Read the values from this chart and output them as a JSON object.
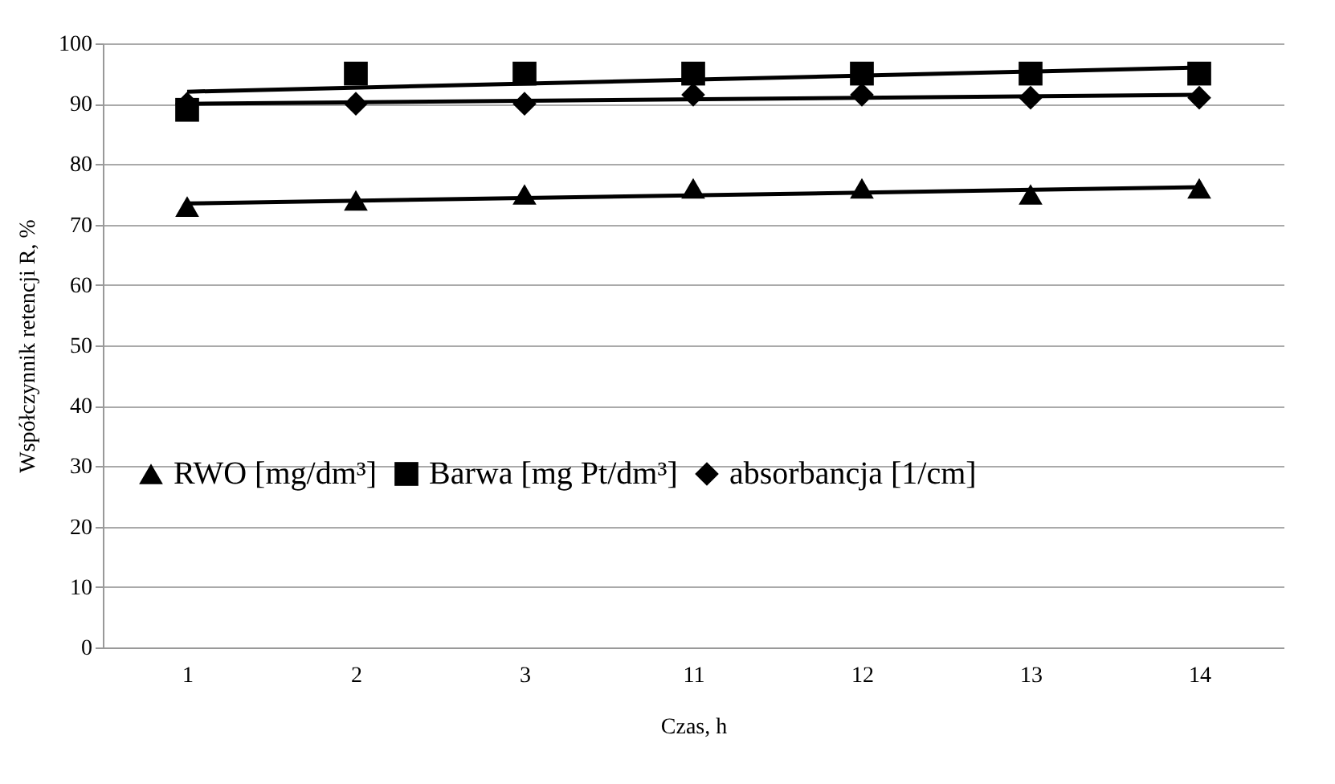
{
  "chart_data": {
    "type": "scatter",
    "xlabel": "Czas, h",
    "ylabel": "Współczynnik retencji R, %",
    "categories": [
      "1",
      "2",
      "3",
      "11",
      "12",
      "13",
      "14"
    ],
    "ylim": [
      0,
      100
    ],
    "yticks": [
      0,
      10,
      20,
      30,
      40,
      50,
      60,
      70,
      80,
      90,
      100
    ],
    "grid": "y",
    "legend": "left",
    "series": [
      {
        "name": "RWO [mg/dm³]",
        "color": "#000000",
        "marker": "triangle",
        "values": [
          73,
          74,
          75,
          76,
          76,
          75,
          76
        ]
      },
      {
        "name": "Barwa [mg Pt/dm³]",
        "color": "#000000",
        "marker": "square",
        "values": [
          89,
          95,
          95,
          95,
          95,
          95,
          95
        ]
      },
      {
        "name": "absorbancja [1/cm]",
        "color": "#000000",
        "marker": "diamond",
        "values": [
          90,
          90,
          90,
          91.5,
          91.5,
          91,
          91
        ]
      },
      {
        "type": "line",
        "color": "#000000",
        "marker": "none",
        "line_style": "solid",
        "x": [
          "1",
          "14"
        ],
        "values": [
          73.5,
          76.2
        ]
      },
      {
        "type": "line",
        "color": "#000000",
        "marker": "none",
        "line_style": "solid",
        "x": [
          "1",
          "14"
        ],
        "values": [
          92,
          96
        ]
      },
      {
        "type": "line",
        "color": "#000000",
        "marker": "none",
        "line_style": "solid",
        "x": [
          "1",
          "14"
        ],
        "values": [
          90,
          91.5
        ]
      }
    ]
  }
}
